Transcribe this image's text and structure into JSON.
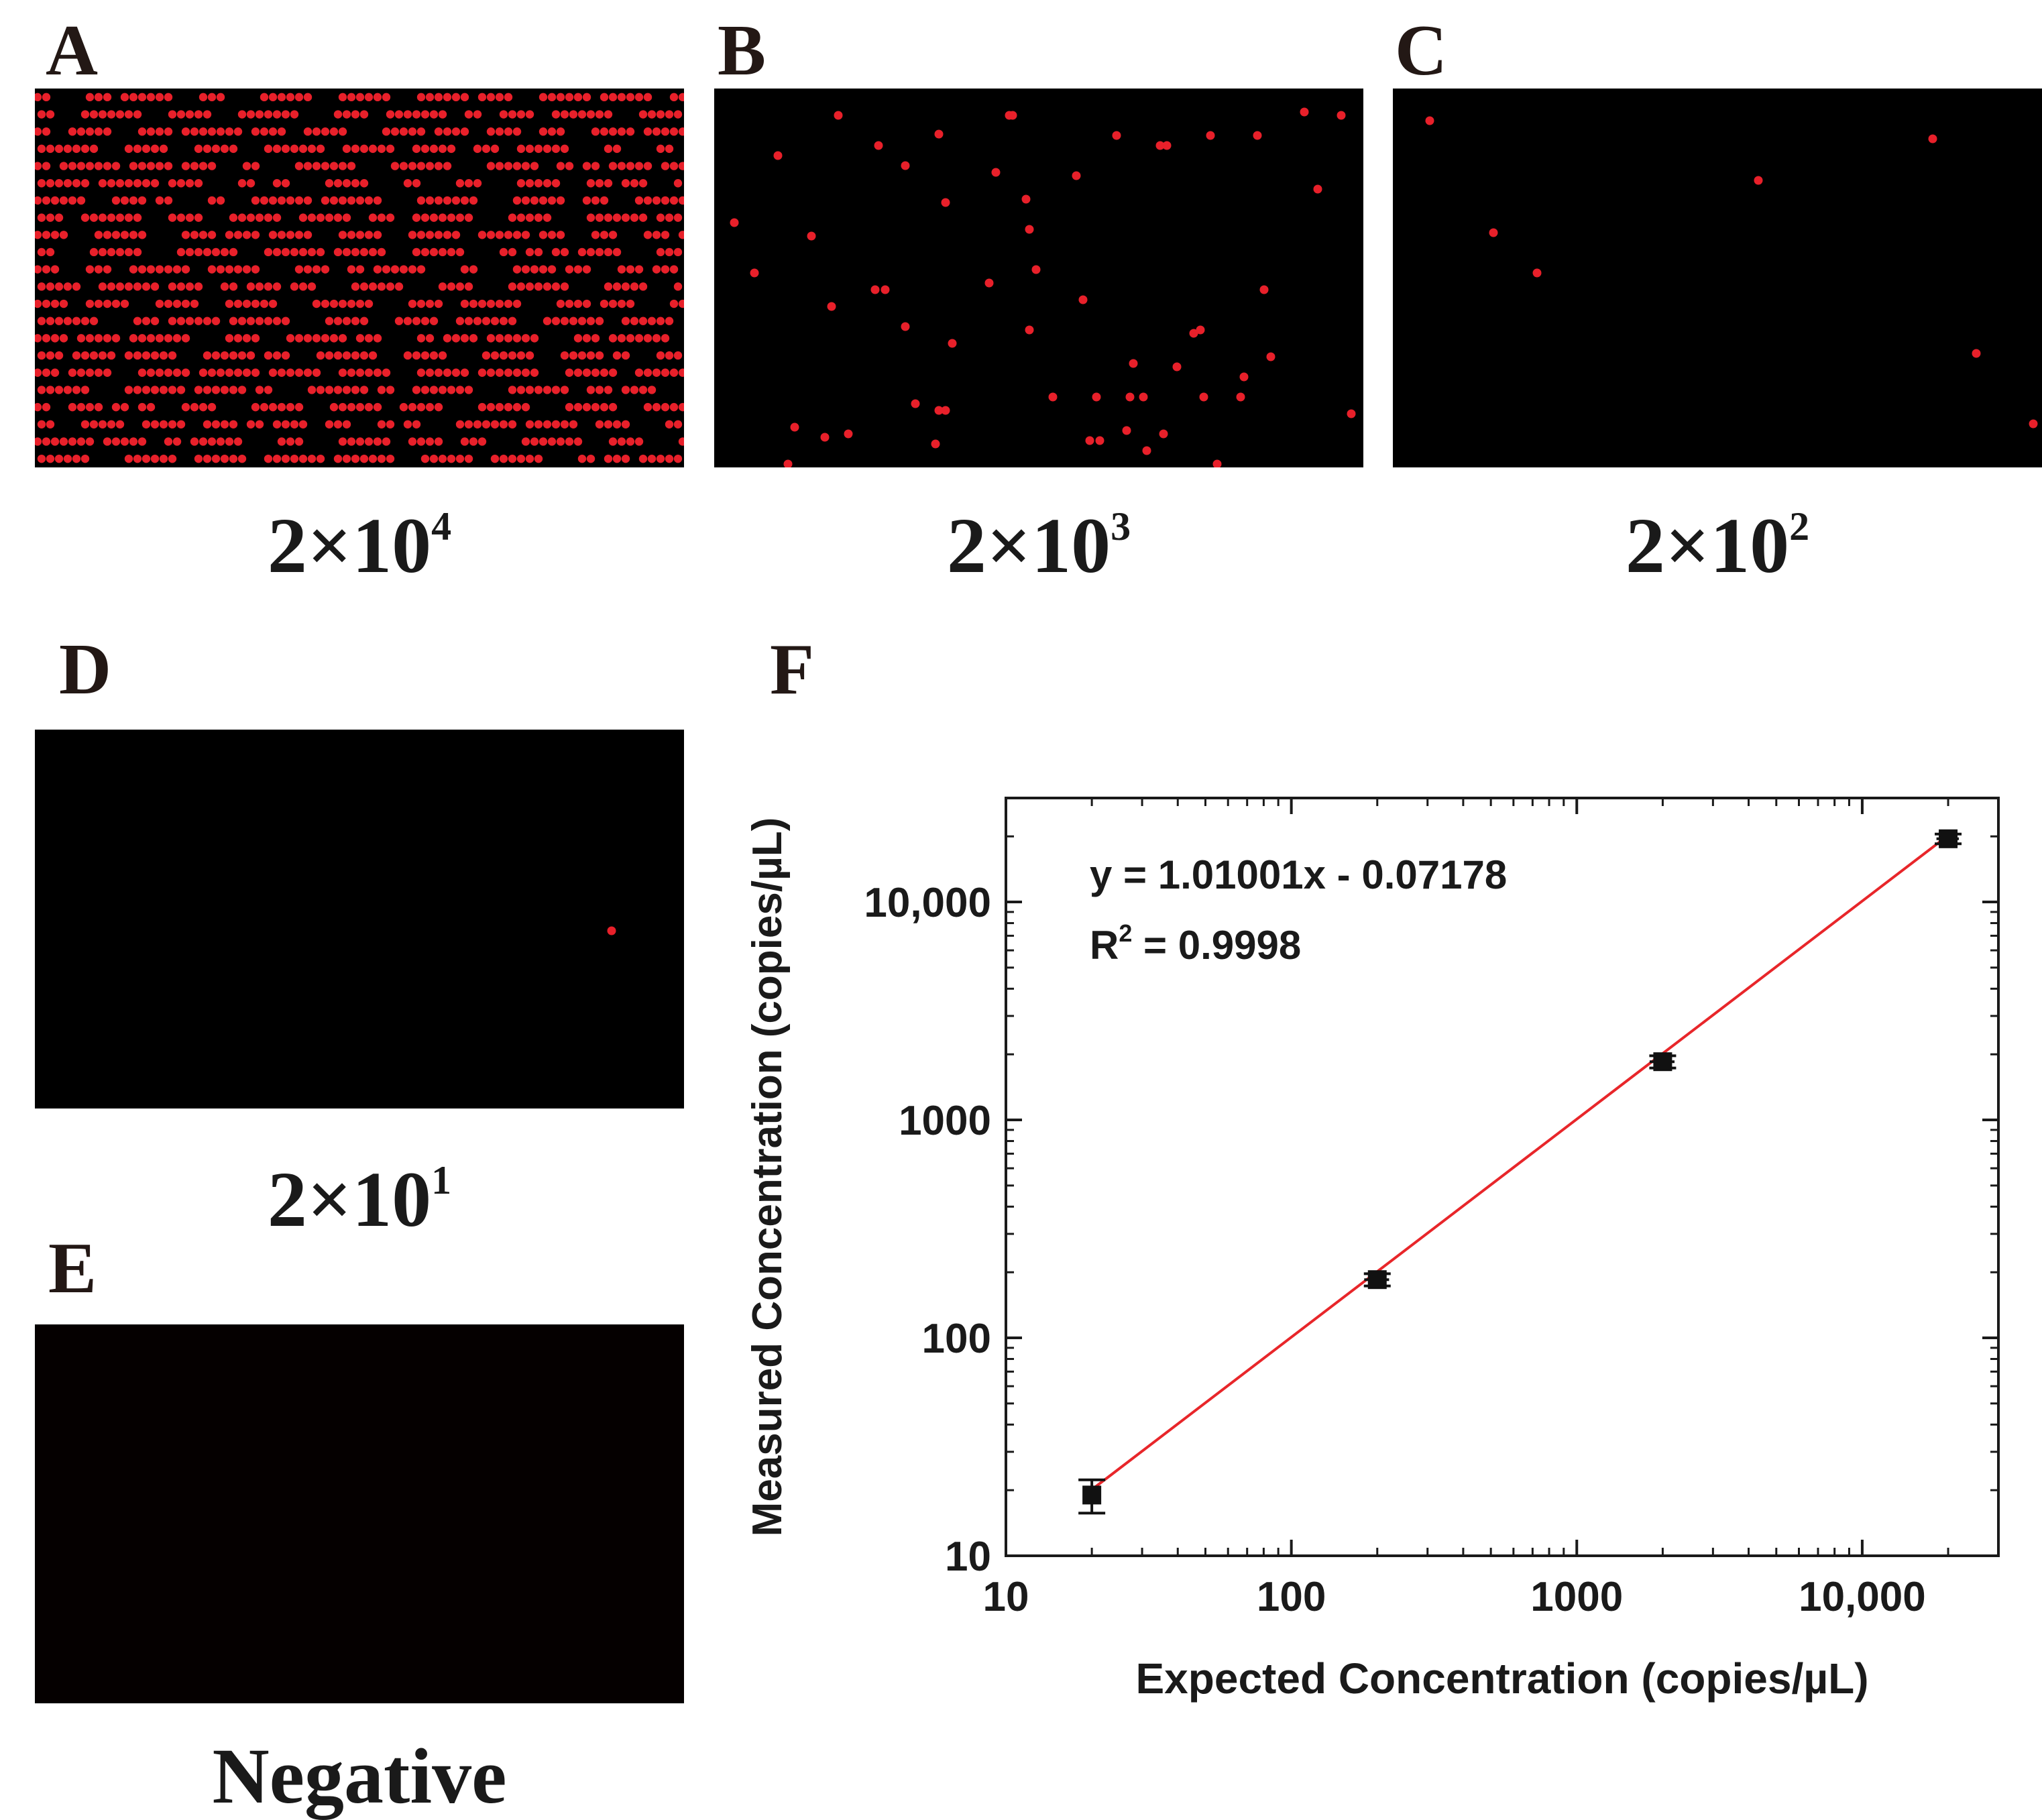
{
  "panels": [
    {
      "letter": "A",
      "caption_base": "2×10",
      "caption_exp": "4",
      "image": "dense-red-droplets"
    },
    {
      "letter": "B",
      "caption_base": "2×10",
      "caption_exp": "3",
      "image": "scattered-red-droplets"
    },
    {
      "letter": "C",
      "caption_base": "2×10",
      "caption_exp": "2",
      "image": "sparse-red-droplets"
    },
    {
      "letter": "D",
      "caption_base": "2×10",
      "caption_exp": "1",
      "image": "single-red-droplet"
    },
    {
      "letter": "E",
      "caption": "Negative",
      "image": "no-droplets"
    }
  ],
  "chart_letter": "F",
  "colors": {
    "fit_line": "#e8262a",
    "droplet": "#e8202a",
    "marker": "#111111"
  },
  "chart_data": {
    "type": "scatter",
    "x_scale": "log",
    "y_scale": "log",
    "xlabel": "Expected Concentration (copies/µL)",
    "ylabel": "Measured Concentration (copies/µL)",
    "xlim": [
      10,
      30000
    ],
    "ylim": [
      10,
      30000
    ],
    "x_ticks": [
      10,
      100,
      1000,
      10000
    ],
    "x_tick_labels": [
      "10",
      "100",
      "1000",
      "10,000"
    ],
    "y_ticks": [
      10,
      100,
      1000,
      10000
    ],
    "y_tick_labels": [
      "10",
      "100",
      "1000",
      "10,000"
    ],
    "points": [
      {
        "x": 20,
        "y": 19,
        "y_err": 3.3,
        "x_err": 0
      },
      {
        "x": 200,
        "y": 185,
        "y_err": 12,
        "x_err": 20
      },
      {
        "x": 2000,
        "y": 1850,
        "y_err": 120,
        "x_err": 200
      },
      {
        "x": 20000,
        "y": 19500,
        "y_err": 1000,
        "x_err": 1800
      }
    ],
    "fit": {
      "slope": 1.01001,
      "intercept": -0.07178,
      "x_range": [
        20,
        20000
      ]
    },
    "equation": "y = 1.01001x - 0.07178",
    "r2_label": "R",
    "r2_exp": "2",
    "r2_value": " = 0.9998",
    "grid": false
  }
}
